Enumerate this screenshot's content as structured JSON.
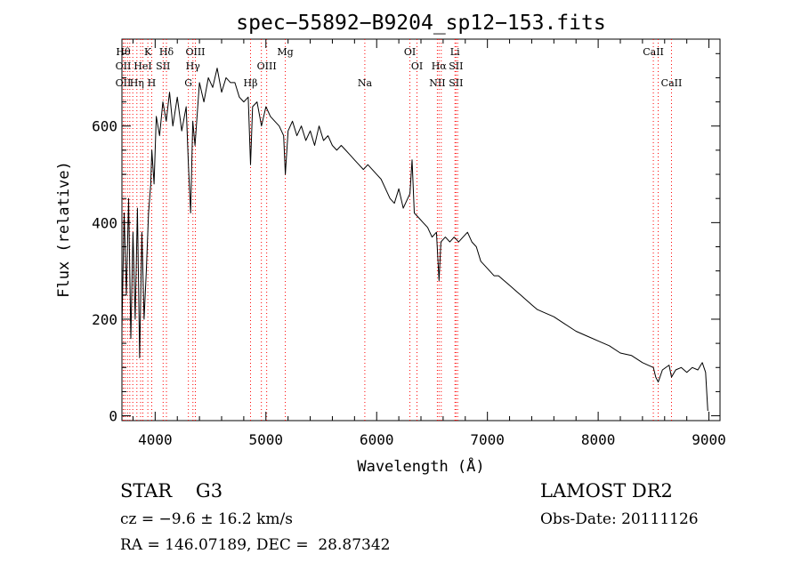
{
  "chart_data": {
    "type": "line",
    "title": "spec−55892−B9204_sp12−153.fits",
    "xlabel": "Wavelength (Å)",
    "ylabel": "Flux (relative)",
    "xlim": [
      3700,
      9100
    ],
    "ylim": [
      -10,
      780
    ],
    "x_ticks": [
      4000,
      5000,
      6000,
      7000,
      8000,
      9000
    ],
    "y_ticks": [
      0,
      200,
      400,
      600
    ],
    "grid": false,
    "line_color": "#000000",
    "marker_color": "#ff0000",
    "series": [
      {
        "x": [
          3700,
          3720,
          3740,
          3760,
          3780,
          3800,
          3820,
          3840,
          3860,
          3880,
          3900,
          3920,
          3940,
          3960,
          3970,
          3990,
          4010,
          4040,
          4070,
          4100,
          4130,
          4160,
          4200,
          4240,
          4280,
          4300,
          4320,
          4340,
          4360,
          4400,
          4440,
          4480,
          4520,
          4560,
          4600,
          4640,
          4680,
          4720,
          4760,
          4800,
          4840,
          4861,
          4880,
          4920,
          4960,
          5000,
          5040,
          5080,
          5120,
          5160,
          5175,
          5200,
          5240,
          5280,
          5320,
          5360,
          5400,
          5440,
          5480,
          5520,
          5560,
          5600,
          5640,
          5680,
          5720,
          5760,
          5800,
          5840,
          5880,
          5920,
          5960,
          6000,
          6040,
          6080,
          6120,
          6160,
          6200,
          6240,
          6280,
          6300,
          6320,
          6340,
          6380,
          6420,
          6460,
          6500,
          6540,
          6563,
          6580,
          6620,
          6660,
          6700,
          6740,
          6780,
          6820,
          6860,
          6900,
          6940,
          6980,
          7020,
          7060,
          7100,
          7150,
          7200,
          7250,
          7300,
          7350,
          7400,
          7450,
          7500,
          7600,
          7700,
          7800,
          7900,
          8000,
          8100,
          8200,
          8300,
          8400,
          8498,
          8520,
          8542,
          8580,
          8640,
          8662,
          8700,
          8750,
          8800,
          8850,
          8900,
          8940,
          8970,
          8990
        ],
        "y": [
          180,
          420,
          250,
          450,
          160,
          380,
          200,
          430,
          120,
          380,
          200,
          300,
          420,
          480,
          550,
          480,
          620,
          580,
          650,
          610,
          670,
          600,
          660,
          590,
          640,
          520,
          420,
          610,
          560,
          690,
          650,
          700,
          680,
          720,
          670,
          700,
          690,
          690,
          660,
          650,
          660,
          520,
          640,
          650,
          600,
          640,
          620,
          610,
          600,
          580,
          500,
          590,
          610,
          580,
          600,
          570,
          590,
          560,
          600,
          570,
          580,
          560,
          550,
          560,
          550,
          540,
          530,
          520,
          510,
          520,
          510,
          500,
          490,
          470,
          450,
          440,
          470,
          430,
          450,
          460,
          530,
          420,
          410,
          400,
          390,
          370,
          380,
          280,
          360,
          370,
          360,
          370,
          360,
          370,
          380,
          360,
          350,
          320,
          310,
          300,
          290,
          290,
          280,
          270,
          260,
          250,
          240,
          230,
          220,
          215,
          205,
          190,
          175,
          165,
          155,
          145,
          130,
          125,
          110,
          100,
          80,
          70,
          95,
          105,
          80,
          95,
          100,
          90,
          100,
          95,
          110,
          90,
          10
        ]
      }
    ],
    "line_markers": [
      {
        "x": 3712,
        "top": "Hθ",
        "mid": "OII",
        "bot": "OII"
      },
      {
        "x": 3727,
        "top": "",
        "mid": "",
        "bot": ""
      },
      {
        "x": 3750,
        "top": "",
        "mid": "",
        "bot": ""
      },
      {
        "x": 3771,
        "top": "",
        "mid": "",
        "bot": ""
      },
      {
        "x": 3798,
        "top": "",
        "mid": "",
        "bot": ""
      },
      {
        "x": 3835,
        "top": "",
        "mid": "",
        "bot": "Hη"
      },
      {
        "x": 3869,
        "top": "",
        "mid": "",
        "bot": ""
      },
      {
        "x": 3889,
        "top": "",
        "mid": "HeI",
        "bot": ""
      },
      {
        "x": 3934,
        "top": "K",
        "mid": "",
        "bot": ""
      },
      {
        "x": 3969,
        "top": "",
        "mid": "",
        "bot": "H"
      },
      {
        "x": 4072,
        "top": "",
        "mid": "SII",
        "bot": ""
      },
      {
        "x": 4102,
        "top": "Hδ",
        "mid": "",
        "bot": ""
      },
      {
        "x": 4300,
        "top": "",
        "mid": "",
        "bot": "G"
      },
      {
        "x": 4341,
        "top": "",
        "mid": "Hγ",
        "bot": ""
      },
      {
        "x": 4363,
        "top": "OIII",
        "mid": "",
        "bot": ""
      },
      {
        "x": 4861,
        "top": "",
        "mid": "",
        "bot": "Hβ"
      },
      {
        "x": 4959,
        "top": "",
        "mid": "",
        "bot": ""
      },
      {
        "x": 5007,
        "top": "",
        "mid": "OIII",
        "bot": ""
      },
      {
        "x": 5175,
        "top": "Mg",
        "mid": "",
        "bot": ""
      },
      {
        "x": 5893,
        "top": "",
        "mid": "",
        "bot": "Na"
      },
      {
        "x": 6300,
        "top": "OI",
        "mid": "",
        "bot": ""
      },
      {
        "x": 6364,
        "top": "",
        "mid": "OI",
        "bot": ""
      },
      {
        "x": 6548,
        "top": "",
        "mid": "",
        "bot": "NII"
      },
      {
        "x": 6563,
        "top": "",
        "mid": "Hα",
        "bot": ""
      },
      {
        "x": 6583,
        "top": "",
        "mid": "",
        "bot": ""
      },
      {
        "x": 6707,
        "top": "Li",
        "mid": "",
        "bot": ""
      },
      {
        "x": 6716,
        "top": "",
        "mid": "SII",
        "bot": "SII"
      },
      {
        "x": 6731,
        "top": "",
        "mid": "",
        "bot": ""
      },
      {
        "x": 8498,
        "top": "CaII",
        "mid": "",
        "bot": ""
      },
      {
        "x": 8542,
        "top": "",
        "mid": "",
        "bot": ""
      },
      {
        "x": 8662,
        "top": "",
        "mid": "",
        "bot": "CaII"
      }
    ]
  },
  "info": {
    "class": "STAR    G3",
    "source": "LAMOST DR2",
    "cz": "cz = −9.6 ± 16.2 km/s",
    "obs_date": "Obs-Date: 20111126",
    "radec": "RA = 146.07189, DEC =  28.87342"
  }
}
